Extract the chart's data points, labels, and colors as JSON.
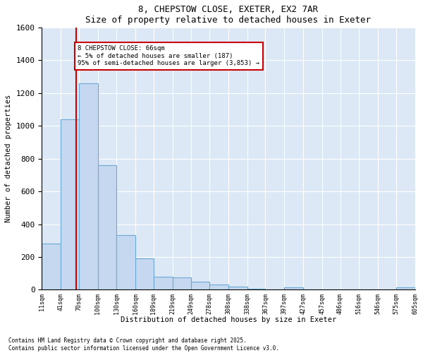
{
  "title1": "8, CHEPSTOW CLOSE, EXETER, EX2 7AR",
  "title2": "Size of property relative to detached houses in Exeter",
  "xlabel": "Distribution of detached houses by size in Exeter",
  "ylabel": "Number of detached properties",
  "bin_edges": [
    11,
    41,
    70,
    100,
    130,
    160,
    189,
    219,
    249,
    278,
    308,
    338,
    367,
    397,
    427,
    457,
    486,
    516,
    546,
    575,
    605
  ],
  "bar_heights": [
    280,
    1040,
    1260,
    760,
    335,
    190,
    80,
    75,
    50,
    30,
    20,
    5,
    0,
    15,
    0,
    0,
    0,
    0,
    0,
    15
  ],
  "bar_color": "#c5d8ef",
  "bar_edge_color": "#6aaad4",
  "property_line_x": 66,
  "property_line_color": "#cc0000",
  "annotation_text": "8 CHEPSTOW CLOSE: 66sqm\n← 5% of detached houses are smaller (187)\n95% of semi-detached houses are larger (3,853) →",
  "annotation_box_color": "#cc0000",
  "ylim": [
    0,
    1600
  ],
  "yticks": [
    0,
    200,
    400,
    600,
    800,
    1000,
    1200,
    1400,
    1600
  ],
  "bg_color": "#dce8f5",
  "grid_color": "#ffffff",
  "footnote1": "Contains HM Land Registry data © Crown copyright and database right 2025.",
  "footnote2": "Contains public sector information licensed under the Open Government Licence v3.0."
}
